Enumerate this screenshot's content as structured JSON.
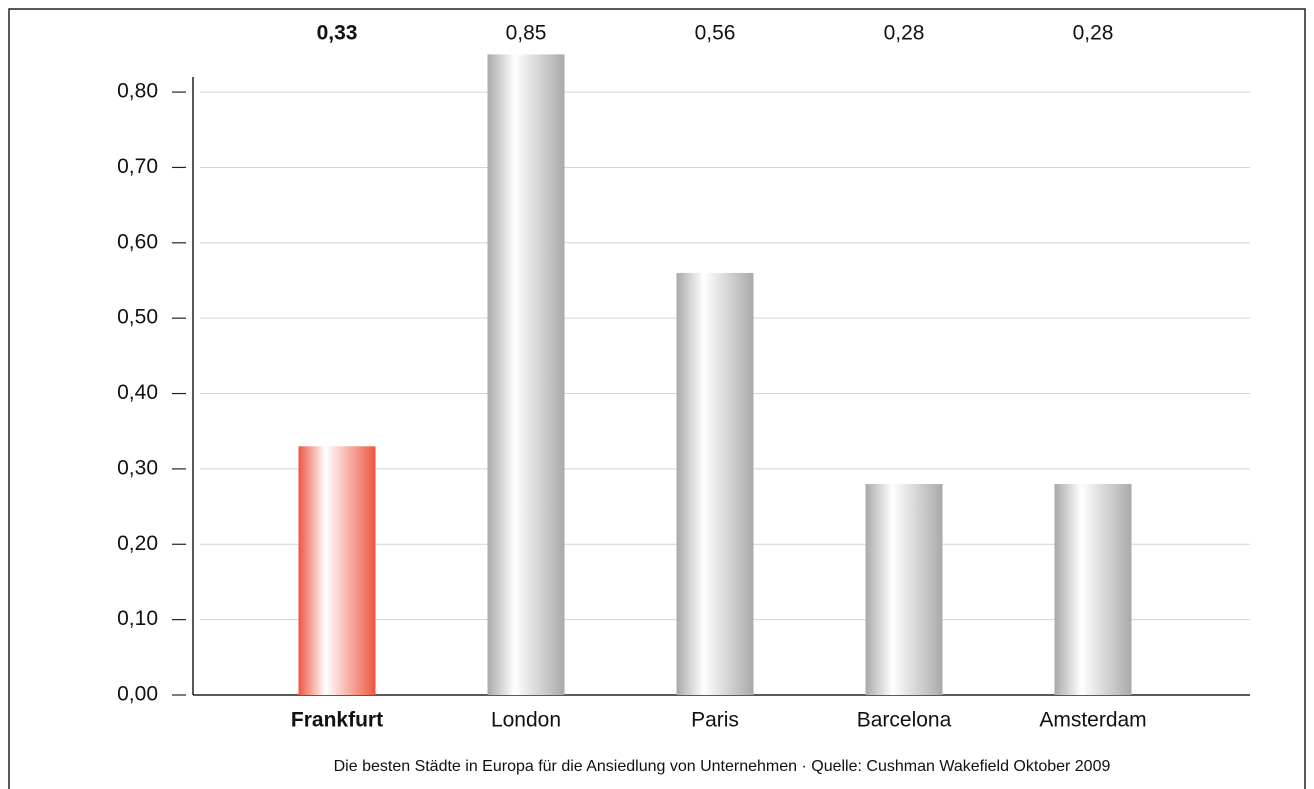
{
  "chart_data": {
    "type": "bar",
    "categories": [
      "Frankfurt",
      "London",
      "Paris",
      "Barcelona",
      "Amsterdam"
    ],
    "values": [
      0.33,
      0.85,
      0.56,
      0.28,
      0.28
    ],
    "value_labels": [
      "0,33",
      "0,85",
      "0,56",
      "0,28",
      "0,28"
    ],
    "colors": [
      "#ee5640",
      "#a9a9a9",
      "#a9a9a9",
      "#a9a9a9",
      "#a9a9a9"
    ],
    "highlight": 0,
    "ylim": [
      0,
      0.82
    ],
    "yticks": [
      {
        "value": 0,
        "label": "0,00"
      },
      {
        "value": 0.1,
        "label": "0,10"
      },
      {
        "value": 0.2,
        "label": "0,20"
      },
      {
        "value": 0.3,
        "label": "0,30"
      },
      {
        "value": 0.4,
        "label": "0,40"
      },
      {
        "value": 0.5,
        "label": "0,50"
      },
      {
        "value": 0.6,
        "label": "0,60"
      },
      {
        "value": 0.7,
        "label": "0,70"
      },
      {
        "value": 0.8,
        "label": "0,80"
      }
    ],
    "grid": true,
    "caption": "Die besten Städte in Europa für die Ansiedlung von Unternehmen · Quelle: Cushman Wakefield Oktober 2009"
  }
}
